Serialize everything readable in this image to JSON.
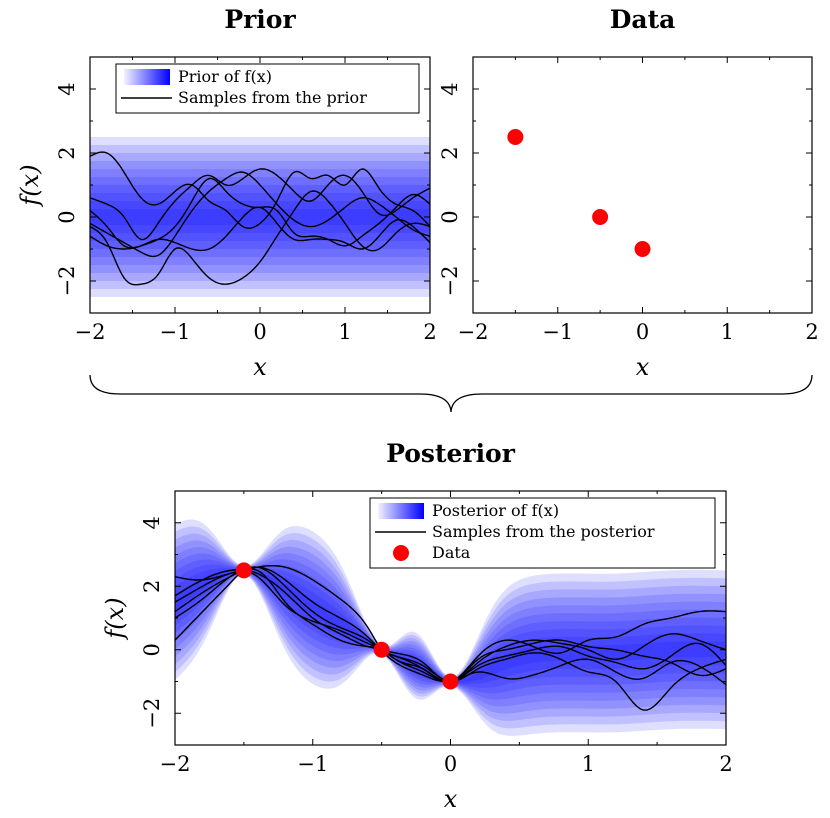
{
  "chart_data": [
    {
      "id": "prior",
      "type": "area",
      "title": "Prior",
      "xlabel": "x",
      "ylabel": "f(x)",
      "xlim": [
        -2,
        2
      ],
      "ylim": [
        -3,
        5
      ],
      "xticks": [
        -2,
        -1,
        0,
        1,
        2
      ],
      "yticks": [
        -2,
        0,
        2,
        4
      ],
      "xtick_labels": [
        "−2",
        "−1",
        "0",
        "1",
        "2"
      ],
      "ytick_labels": [
        "−2",
        "0",
        "2",
        "4"
      ],
      "legend": [
        "Prior of f(x)",
        "Samples from the prior"
      ],
      "legend_position": "top-right",
      "band": {
        "mean": 0,
        "std": 1,
        "extent_std": 2.5
      },
      "series": [
        {
          "x": [
            -2,
            -1.8,
            -1.6,
            -1.4,
            -1.2,
            -1,
            -0.8,
            -0.6,
            -0.4,
            -0.2,
            0,
            0.2,
            0.4,
            0.6,
            0.8,
            1,
            1.2,
            1.4,
            1.6,
            1.8,
            2
          ],
          "values": [
            1.9,
            2.0,
            1.4,
            0.6,
            0.4,
            0.8,
            1.0,
            0.5,
            0.2,
            -0.3,
            -0.2,
            0.5,
            1.4,
            1.2,
            1.3,
            1.0,
            1.5,
            0.9,
            0.4,
            0.2,
            -0.3
          ]
        },
        {
          "x": [
            -2,
            -1.8,
            -1.6,
            -1.4,
            -1.2,
            -1,
            -0.8,
            -0.6,
            -0.4,
            -0.2,
            0,
            0.2,
            0.4,
            0.6,
            0.8,
            1,
            1.2,
            1.4,
            1.6,
            1.8,
            2
          ],
          "values": [
            0.6,
            0.4,
            0.0,
            -0.7,
            -0.2,
            0.5,
            1.0,
            1.3,
            1.0,
            1.2,
            1.5,
            1.3,
            0.8,
            0.5,
            1.0,
            1.3,
            0.8,
            0.1,
            0.2,
            0.6,
            0.9
          ]
        },
        {
          "x": [
            -2,
            -1.8,
            -1.6,
            -1.4,
            -1.2,
            -1,
            -0.8,
            -0.6,
            -0.4,
            -0.2,
            0,
            0.2,
            0.4,
            0.6,
            0.8,
            1,
            1.2,
            1.4,
            1.6,
            1.8,
            2
          ],
          "values": [
            -0.3,
            -0.8,
            -1.9,
            -2.1,
            -1.8,
            -1.0,
            -1.3,
            -1.9,
            -2.1,
            -1.9,
            -1.4,
            -0.6,
            0.2,
            0.8,
            0.5,
            -0.2,
            -0.9,
            -1.0,
            -0.5,
            -0.2,
            -0.3
          ]
        },
        {
          "x": [
            -2,
            -1.8,
            -1.6,
            -1.4,
            -1.2,
            -1,
            -0.8,
            -0.6,
            -0.4,
            -0.2,
            0,
            0.2,
            0.4,
            0.6,
            0.8,
            1,
            1.2,
            1.4,
            1.6,
            1.8,
            2
          ],
          "values": [
            -0.2,
            -0.5,
            -0.8,
            -1.1,
            -1.2,
            -0.6,
            0.2,
            0.8,
            1.2,
            1.4,
            1.0,
            0.4,
            -0.1,
            -0.3,
            -0.1,
            0.3,
            0.6,
            0.4,
            0.0,
            -0.4,
            -0.6
          ]
        },
        {
          "x": [
            -2,
            -1.8,
            -1.6,
            -1.4,
            -1.2,
            -1,
            -0.8,
            -0.6,
            -0.4,
            -0.2,
            0,
            0.2,
            0.4,
            0.6,
            0.8,
            1,
            1.2,
            1.4,
            1.6,
            1.8,
            2
          ],
          "values": [
            0.2,
            -0.3,
            -0.9,
            -0.9,
            -0.7,
            -0.3,
            0.5,
            1.2,
            0.8,
            0.4,
            0.3,
            0.2,
            -0.5,
            -0.6,
            -0.7,
            -0.9,
            -0.6,
            -0.2,
            0.3,
            0.7,
            0.4
          ]
        },
        {
          "x": [
            -2,
            -1.8,
            -1.6,
            -1.4,
            -1.2,
            -1,
            -0.8,
            -0.6,
            -0.4,
            -0.2,
            0,
            0.2,
            0.4,
            0.6,
            0.8,
            1,
            1.2,
            1.4,
            1.6,
            1.8,
            2
          ],
          "values": [
            -0.6,
            -0.9,
            -1.0,
            -0.9,
            -0.7,
            -0.8,
            -1.0,
            -1.0,
            -0.6,
            0.0,
            0.3,
            -0.2,
            -0.7,
            -0.7,
            -0.7,
            -0.8,
            -1.0,
            -0.6,
            -0.1,
            -0.3,
            -0.8
          ]
        }
      ]
    },
    {
      "id": "data",
      "type": "scatter",
      "title": "Data",
      "xlabel": "x",
      "ylabel": "",
      "xlim": [
        -2,
        2
      ],
      "ylim": [
        -3,
        5
      ],
      "xticks": [
        -2,
        -1,
        0,
        1,
        2
      ],
      "yticks": [
        -2,
        0,
        2,
        4
      ],
      "xtick_labels": [
        "−2",
        "−1",
        "0",
        "1",
        "2"
      ],
      "ytick_labels": [
        "−2",
        "0",
        "2",
        "4"
      ],
      "points": {
        "x": [
          -1.5,
          -0.5,
          0
        ],
        "y": [
          2.5,
          0,
          -1
        ]
      },
      "point_color": "#ff0000"
    },
    {
      "id": "posterior",
      "type": "area",
      "title": "Posterior",
      "xlabel": "x",
      "ylabel": "f(x)",
      "xlim": [
        -2,
        2
      ],
      "ylim": [
        -3,
        5
      ],
      "xticks": [
        -2,
        -1,
        0,
        1,
        2
      ],
      "yticks": [
        -2,
        0,
        2,
        4
      ],
      "xtick_labels": [
        "−2",
        "−1",
        "0",
        "1",
        "2"
      ],
      "ytick_labels": [
        "−2",
        "0",
        "2",
        "4"
      ],
      "legend": [
        "Posterior of f(x)",
        "Samples from the posterior",
        "Data"
      ],
      "legend_position": "top-right",
      "band": {
        "extent_std": 2.5
      },
      "points": {
        "x": [
          -1.5,
          -0.5,
          0
        ],
        "y": [
          2.5,
          0,
          -1
        ]
      },
      "point_color": "#ff0000",
      "series": [
        {
          "x": [
            -2,
            -1.8,
            -1.6,
            -1.5,
            -1.4,
            -1.2,
            -1,
            -0.8,
            -0.6,
            -0.5,
            -0.4,
            -0.2,
            0,
            0.2,
            0.4,
            0.6,
            0.8,
            1,
            1.2,
            1.4,
            1.6,
            1.8,
            2
          ],
          "values": [
            1.7,
            2.2,
            2.5,
            2.5,
            2.3,
            1.4,
            0.9,
            0.6,
            0.2,
            0,
            -0.3,
            -0.7,
            -1.0,
            -0.5,
            -0.2,
            0.0,
            0.1,
            -0.2,
            -0.4,
            -0.6,
            -0.2,
            0.2,
            -0.5
          ]
        },
        {
          "x": [
            -2,
            -1.8,
            -1.6,
            -1.5,
            -1.4,
            -1.2,
            -1,
            -0.8,
            -0.6,
            -0.5,
            -0.4,
            -0.2,
            0,
            0.2,
            0.4,
            0.6,
            0.8,
            1,
            1.2,
            1.4,
            1.6,
            1.8,
            2
          ],
          "values": [
            1.2,
            1.8,
            2.3,
            2.5,
            2.6,
            2.2,
            1.5,
            1.0,
            0.4,
            0,
            -0.2,
            -0.6,
            -1.0,
            -0.4,
            0.1,
            0.3,
            0.2,
            0.0,
            -0.3,
            0.1,
            0.5,
            0.3,
            0.0
          ]
        },
        {
          "x": [
            -2,
            -1.8,
            -1.6,
            -1.5,
            -1.4,
            -1.2,
            -1,
            -0.8,
            -0.6,
            -0.5,
            -0.4,
            -0.2,
            0,
            0.2,
            0.4,
            0.6,
            0.8,
            1,
            1.2,
            1.4,
            1.6,
            1.8,
            2
          ],
          "values": [
            0.3,
            1.2,
            2.1,
            2.5,
            2.6,
            2.0,
            1.2,
            0.7,
            0.3,
            0,
            -0.2,
            -0.5,
            -1.0,
            -0.6,
            -0.3,
            -0.1,
            -0.3,
            -0.7,
            -1.0,
            -1.9,
            -1.2,
            -0.6,
            -0.3
          ]
        },
        {
          "x": [
            -2,
            -1.8,
            -1.6,
            -1.5,
            -1.4,
            -1.2,
            -1,
            -0.8,
            -0.6,
            -0.5,
            -0.4,
            -0.2,
            0,
            0.2,
            0.4,
            0.6,
            0.8,
            1,
            1.2,
            1.4,
            1.6,
            1.8,
            2
          ],
          "values": [
            2.3,
            2.2,
            2.4,
            2.5,
            2.6,
            2.6,
            2.2,
            1.6,
            0.7,
            0,
            -0.4,
            -0.8,
            -1.0,
            -0.7,
            -0.9,
            -0.8,
            -0.5,
            -0.3,
            -0.7,
            -0.9,
            -0.4,
            -0.5,
            -1.1
          ]
        },
        {
          "x": [
            -2,
            -1.8,
            -1.6,
            -1.5,
            -1.4,
            -1.2,
            -1,
            -0.8,
            -0.6,
            -0.5,
            -0.4,
            -0.2,
            0,
            0.2,
            0.4,
            0.6,
            0.8,
            1,
            1.2,
            1.4,
            1.6,
            1.8,
            2
          ],
          "values": [
            1.0,
            1.6,
            2.3,
            2.5,
            2.4,
            1.8,
            1.0,
            0.5,
            0.1,
            0,
            -0.1,
            -0.4,
            -1.0,
            -0.3,
            0.0,
            0.2,
            0.3,
            0.1,
            0.0,
            -0.2,
            -0.4,
            -0.8,
            -0.6
          ]
        },
        {
          "x": [
            -2,
            -1.8,
            -1.6,
            -1.5,
            -1.4,
            -1.2,
            -1,
            -0.8,
            -0.6,
            -0.5,
            -0.4,
            -0.2,
            0,
            0.2,
            0.4,
            0.6,
            0.8,
            1,
            1.2,
            1.4,
            1.6,
            1.8,
            2
          ],
          "values": [
            1.5,
            2.0,
            2.4,
            2.5,
            2.5,
            1.5,
            0.8,
            0.3,
            0.1,
            0,
            -0.3,
            -0.6,
            -1.0,
            -0.2,
            0.3,
            0.1,
            -0.1,
            0.3,
            0.4,
            0.8,
            1.0,
            1.2,
            1.2
          ]
        }
      ]
    }
  ],
  "colors": {
    "band": "#0000ff",
    "sample_line": "#000000",
    "data_point": "#ff0000"
  }
}
